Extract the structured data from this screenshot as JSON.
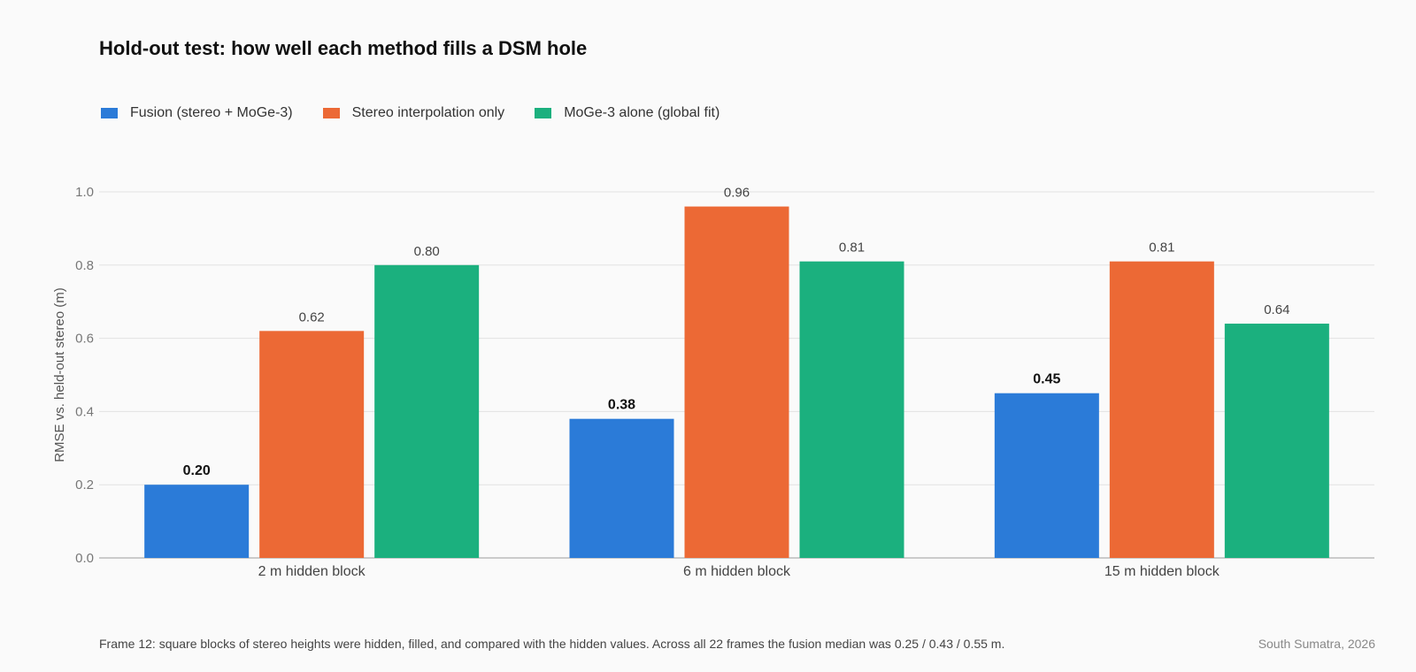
{
  "chart_data": {
    "type": "bar",
    "title": "Hold-out test: how well each method fills a DSM hole",
    "ylabel": "RMSE vs. held-out stereo (m)",
    "xlabel": "",
    "ylim": [
      0,
      1.0
    ],
    "yticks": [
      "0.0",
      "0.2",
      "0.4",
      "0.6",
      "0.8",
      "1.0"
    ],
    "grid": true,
    "legend_position": "top-left",
    "categories": [
      "2 m hidden block",
      "6 m hidden block",
      "15 m hidden block"
    ],
    "series": [
      {
        "name": "Fusion (stereo + MoGe-3)",
        "color": "#2b7bd8",
        "values": [
          0.2,
          0.38,
          0.45
        ],
        "labels": [
          "0.20",
          "0.38",
          "0.45"
        ],
        "bold_labels": true
      },
      {
        "name": "Stereo interpolation only",
        "color": "#ec6935",
        "values": [
          0.62,
          0.96,
          0.81
        ],
        "labels": [
          "0.62",
          "0.96",
          "0.81"
        ],
        "bold_labels": false
      },
      {
        "name": "MoGe-3 alone (global fit)",
        "color": "#1bb07e",
        "values": [
          0.8,
          0.81,
          0.64
        ],
        "labels": [
          "0.80",
          "0.81",
          "0.64"
        ],
        "bold_labels": false
      }
    ]
  },
  "footnote": "Frame 12: square blocks of stereo heights were hidden, filled, and compared with the hidden values. Across all 22 frames the fusion median was 0.25 / 0.43 / 0.55 m.",
  "credit": "South Sumatra, 2026"
}
